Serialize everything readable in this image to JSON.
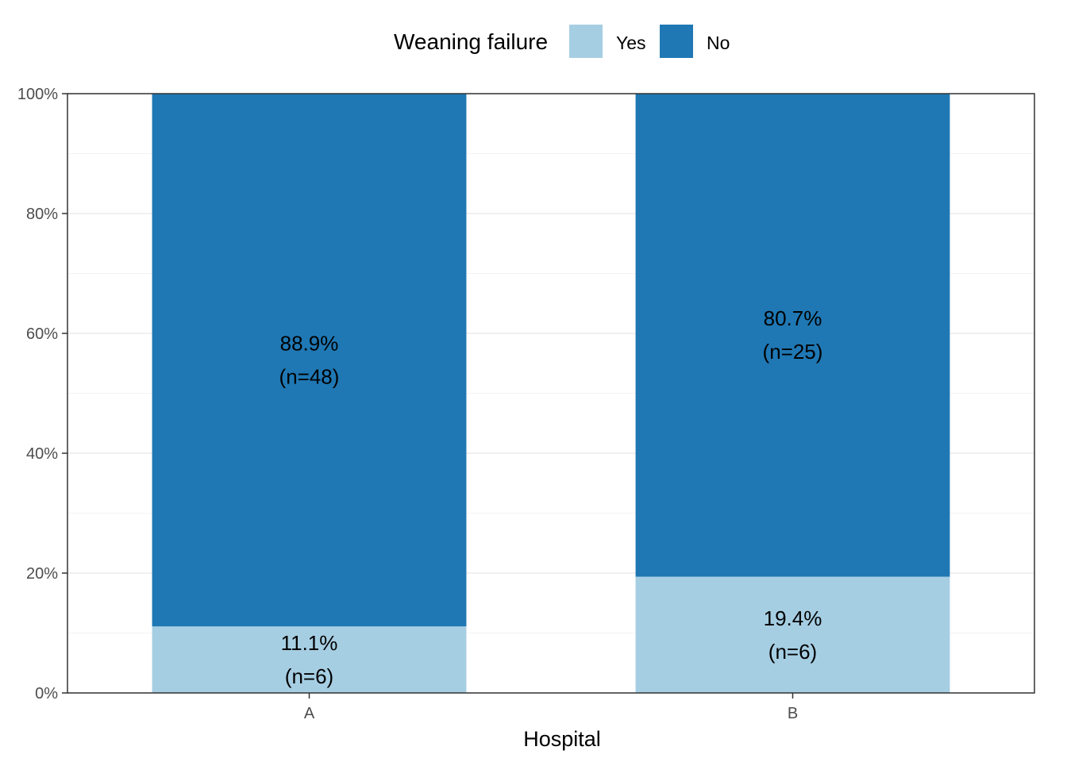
{
  "chart_data": {
    "type": "bar",
    "stacked": true,
    "categories": [
      "A",
      "B"
    ],
    "series": [
      {
        "name": "Yes",
        "color": "#a6cee3",
        "values": [
          11.1,
          19.4
        ],
        "percent_labels": [
          "11.1%",
          "19.4%"
        ],
        "n_labels": [
          "(n=6)",
          "(n=6)"
        ]
      },
      {
        "name": "No",
        "color": "#1f78b4",
        "values": [
          88.9,
          80.7
        ],
        "percent_labels": [
          "88.9%",
          "80.7%"
        ],
        "n_labels": [
          "(n=48)",
          "(n=25)"
        ]
      }
    ],
    "xlabel": "Hospital",
    "ylabel": "",
    "ylim": [
      0,
      100
    ],
    "yticks": [
      0,
      20,
      40,
      60,
      80,
      100
    ],
    "ytick_labels": [
      "0%",
      "20%",
      "40%",
      "60%",
      "80%",
      "100%"
    ],
    "legend": {
      "title": "Weaning failure",
      "position": "top",
      "items": [
        "Yes",
        "No"
      ]
    },
    "grid": true
  }
}
